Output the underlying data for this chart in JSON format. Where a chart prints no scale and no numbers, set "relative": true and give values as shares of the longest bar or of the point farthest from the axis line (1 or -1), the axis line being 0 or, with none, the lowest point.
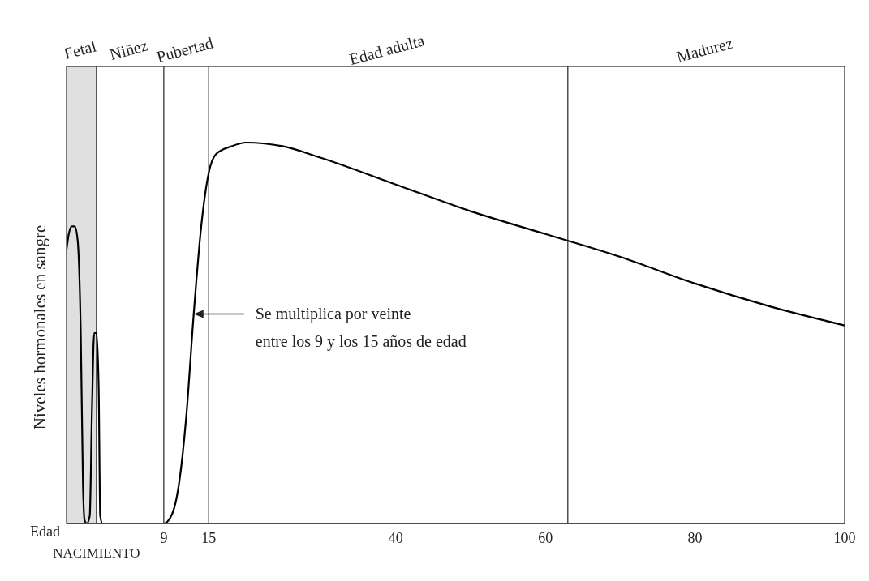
{
  "chart_data": {
    "type": "line",
    "relative": true,
    "ylabel": "Niveles hormonales en sangre",
    "xlabel": "Edad",
    "x": [
      -4,
      -3.7,
      -3.3,
      -2.9,
      -2.5,
      -2.1,
      -1.8,
      -1.6,
      -1.3,
      -0.9,
      -0.6,
      -0.3,
      0,
      0.3,
      0.5,
      0.8,
      9,
      10,
      11,
      12,
      13,
      14,
      15,
      16,
      18,
      20,
      25,
      30,
      40,
      50,
      60,
      70,
      80,
      90,
      100
    ],
    "series": [
      {
        "color": "#000000",
        "values": [
          0.72,
          0.76,
          0.78,
          0.78,
          0.74,
          0.5,
          0.1,
          0.01,
          0,
          0.02,
          0.3,
          0.5,
          0.5,
          0.35,
          0.02,
          0,
          0,
          0.02,
          0.1,
          0.28,
          0.55,
          0.78,
          0.92,
          0.97,
          0.99,
          1,
          0.99,
          0.96,
          0.89,
          0.82,
          0.76,
          0.7,
          0.63,
          0.57,
          0.52
        ]
      }
    ],
    "xlim": [
      -4,
      100
    ],
    "xticks": [
      9,
      15,
      40,
      60,
      80,
      100
    ],
    "bands": [
      {
        "axis": "x",
        "from": -4,
        "to": 0,
        "label": "Fetal",
        "color": "#e0e0e0"
      }
    ],
    "ref_lines": [
      {
        "axis": "x",
        "value": 0,
        "label": "NACIMIENTO"
      },
      {
        "axis": "x",
        "value": 9
      },
      {
        "axis": "x",
        "value": 15
      },
      {
        "axis": "x",
        "value": 63
      }
    ],
    "annotations": [
      "Niñez",
      "Pubertad",
      "Edad adulta",
      "Madurez",
      {
        "text": "Se multiplica por veinte entre los 9 y los 15 años de edad",
        "x": 13,
        "y": 0.55
      }
    ],
    "marker": "none",
    "line_style": "solid"
  }
}
